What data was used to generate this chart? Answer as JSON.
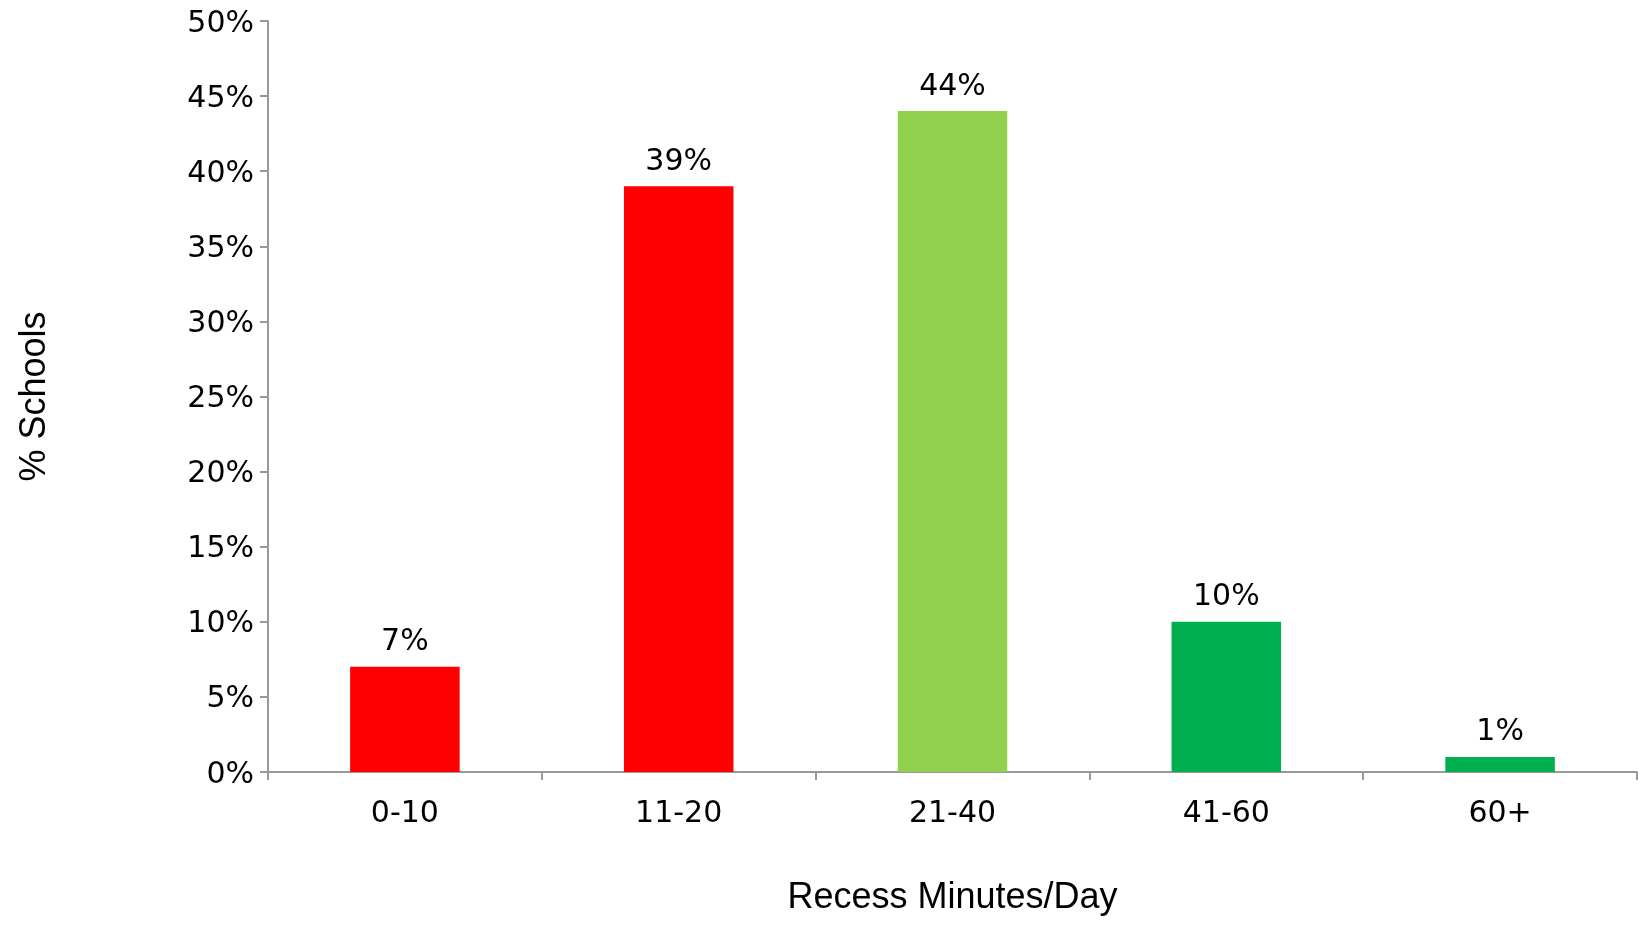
{
  "chart_data": {
    "type": "bar",
    "xlabel": "Recess Minutes/Day",
    "ylabel": "% Schools",
    "categories": [
      "0-10",
      "11-20",
      "21-40",
      "41-60",
      "60+"
    ],
    "values": [
      7,
      39,
      44,
      10,
      1
    ],
    "colors": [
      "#ff0000",
      "#ff0000",
      "#92d050",
      "#00b050",
      "#00b050"
    ],
    "value_labels": [
      "7%",
      "39%",
      "44%",
      "10%",
      "1%"
    ],
    "ylim": [
      0,
      50
    ],
    "yticks": [
      {
        "value": 0,
        "label": "0%"
      },
      {
        "value": 5,
        "label": "5%"
      },
      {
        "value": 10,
        "label": "10%"
      },
      {
        "value": 15,
        "label": "15%"
      },
      {
        "value": 20,
        "label": "20%"
      },
      {
        "value": 25,
        "label": "25%"
      },
      {
        "value": 30,
        "label": "30%"
      },
      {
        "value": 35,
        "label": "35%"
      },
      {
        "value": 40,
        "label": "40%"
      },
      {
        "value": 45,
        "label": "45%"
      },
      {
        "value": 50,
        "label": "50%"
      }
    ],
    "grid": false
  }
}
